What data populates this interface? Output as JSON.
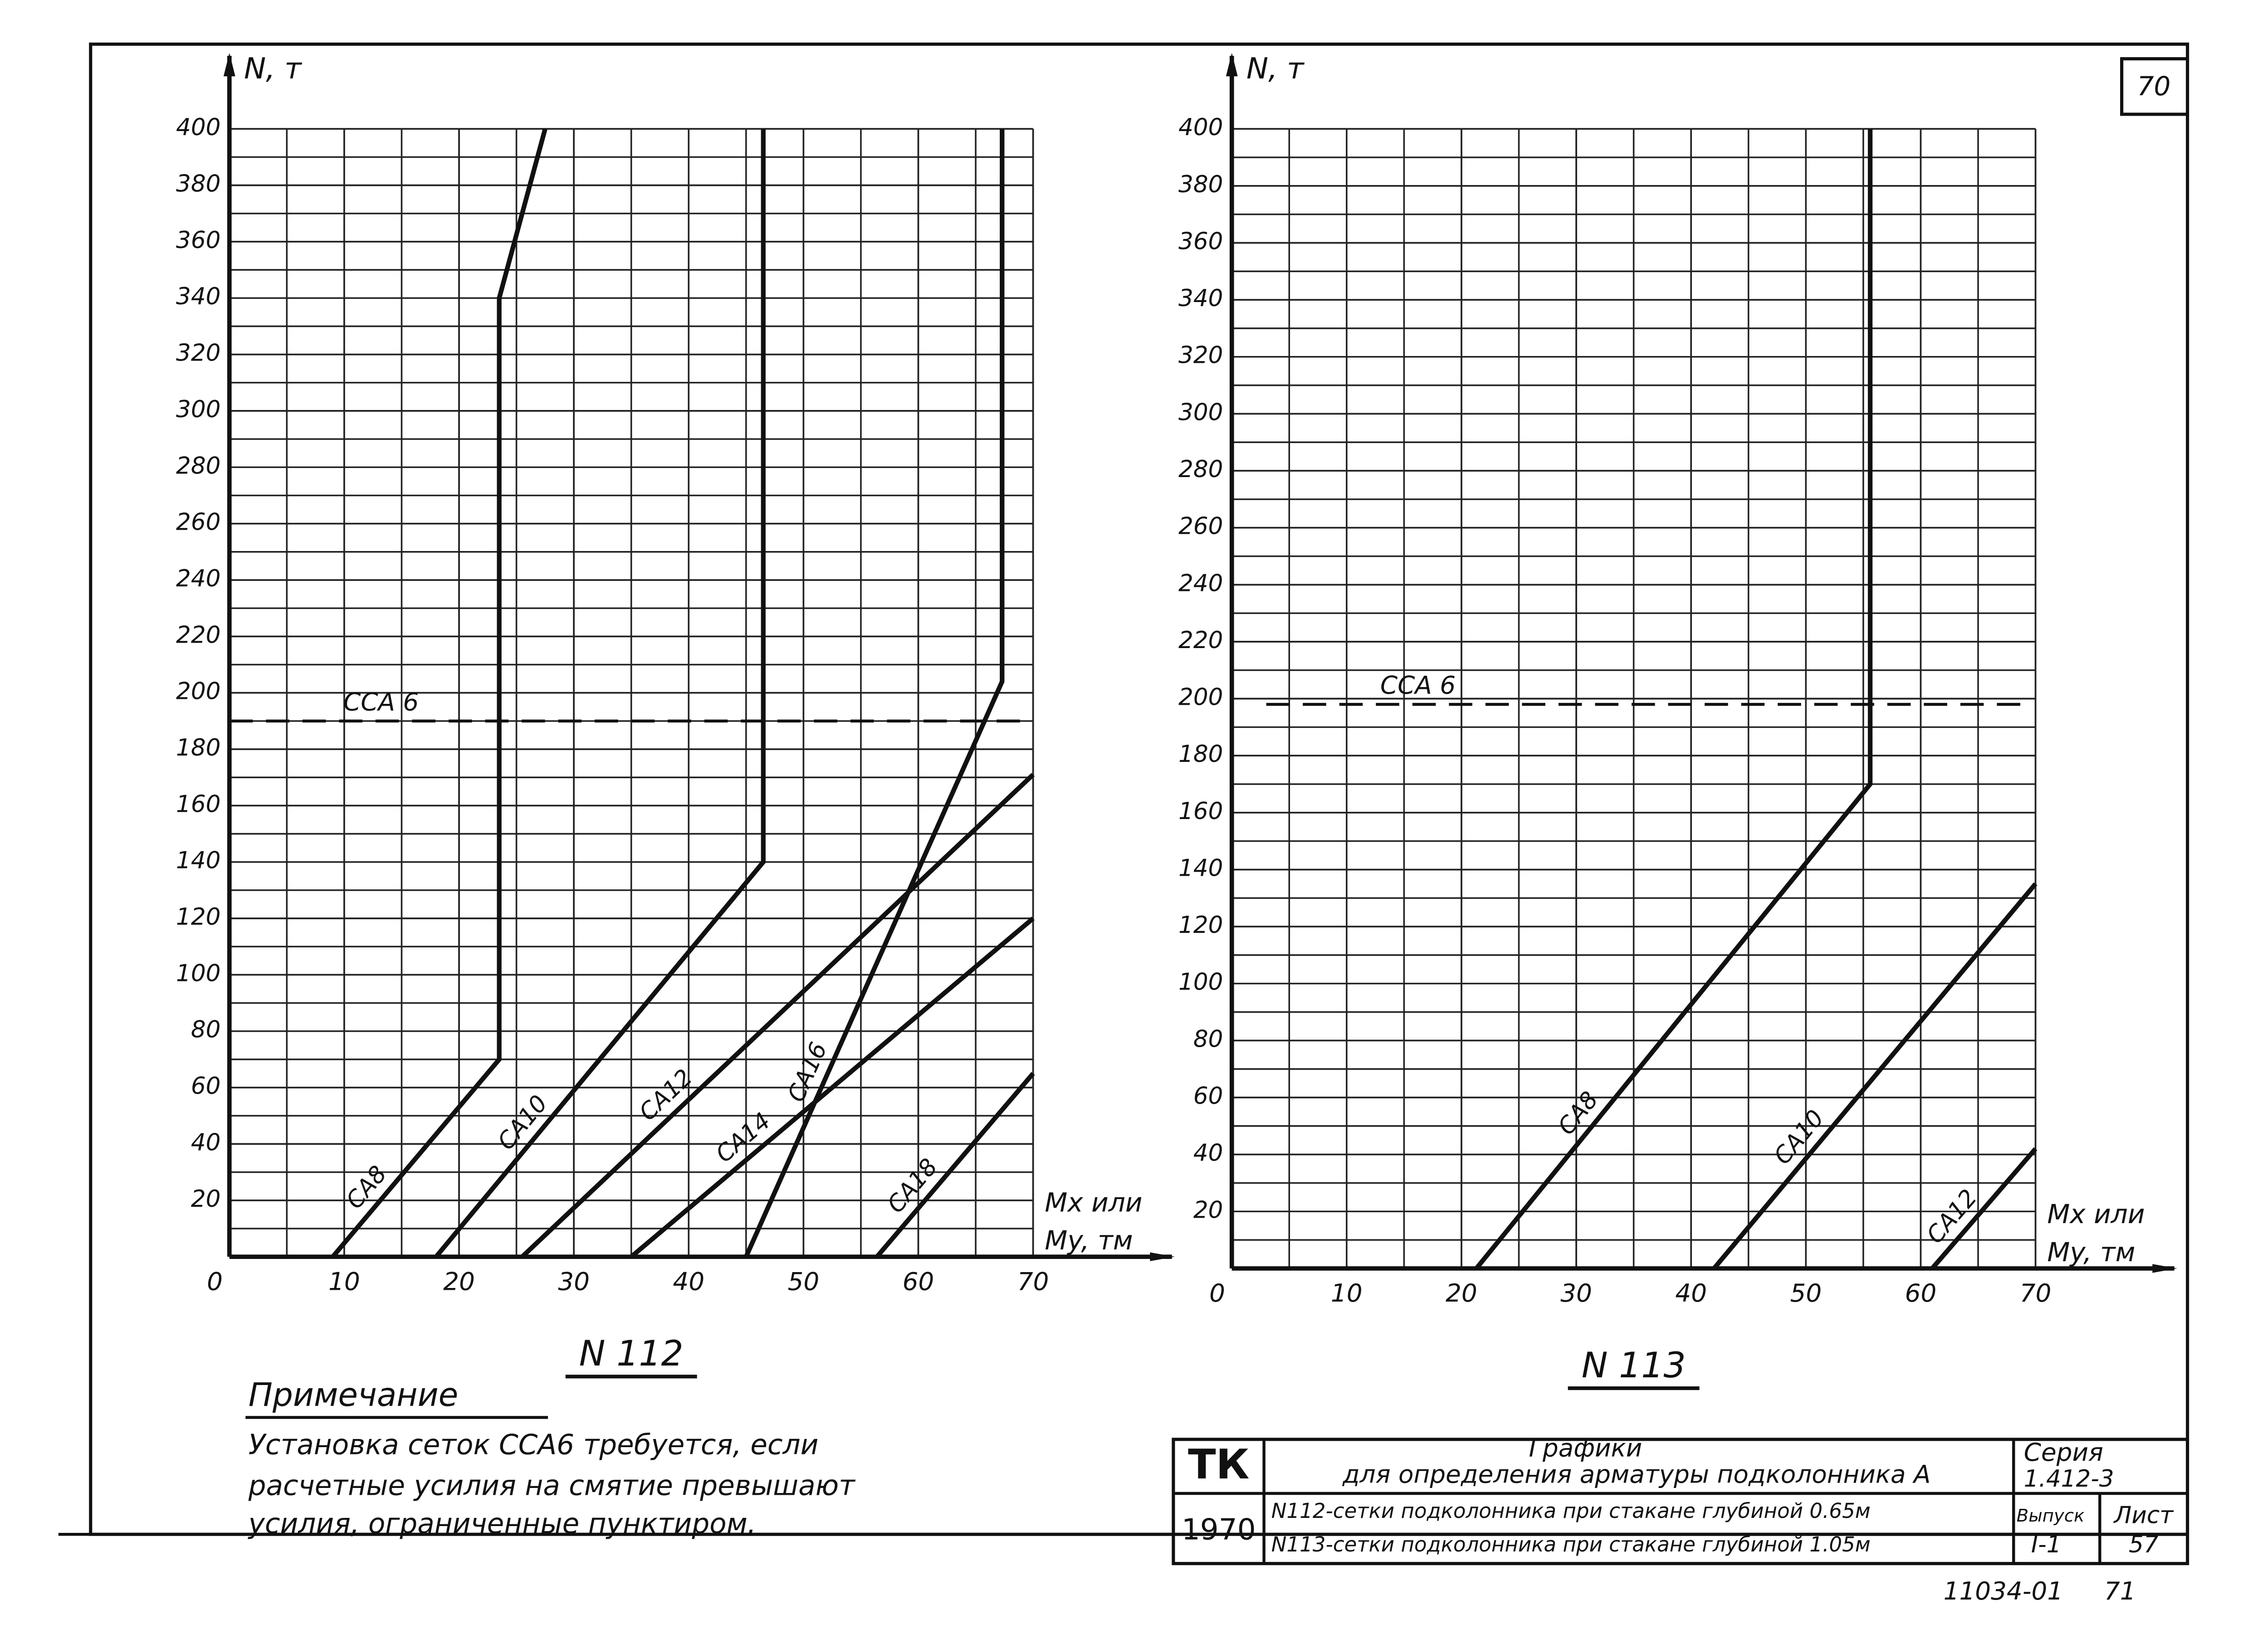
{
  "page_number": "70",
  "chart_data": [
    {
      "type": "line",
      "title": "N 112",
      "y_label": "N, т",
      "x_label": [
        "Mx или",
        "My, тм"
      ],
      "xlim": [
        0,
        70
      ],
      "ylim": [
        0,
        400
      ],
      "xticks": [
        0,
        10,
        20,
        30,
        40,
        50,
        60,
        70
      ],
      "yticks": [
        20,
        40,
        60,
        80,
        100,
        120,
        140,
        160,
        180,
        200,
        220,
        240,
        260,
        280,
        300,
        320,
        340,
        360,
        380,
        400
      ],
      "grid": true,
      "series": [
        {
          "name": "ССА 6",
          "color": "#111111",
          "dashed": true,
          "x": [
            0,
            70
          ],
          "values": [
            190,
            190
          ]
        },
        {
          "name": "СА8",
          "color": "#111111",
          "x": [
            9,
            23.5,
            23.5,
            27.5
          ],
          "values": [
            0,
            70,
            340,
            400
          ]
        },
        {
          "name": "СА10",
          "color": "#111111",
          "x": [
            18,
            46.5,
            46.5
          ],
          "values": [
            0,
            140,
            400
          ]
        },
        {
          "name": "СА12",
          "color": "#111111",
          "x": [
            25.5,
            70
          ],
          "values": [
            0,
            171
          ]
        },
        {
          "name": "СА14",
          "color": "#111111",
          "x": [
            35,
            70
          ],
          "values": [
            0,
            120
          ]
        },
        {
          "name": "СА16",
          "color": "#111111",
          "x": [
            45,
            67.3,
            67.3
          ],
          "values": [
            0,
            204,
            400
          ]
        },
        {
          "name": "СА18",
          "color": "#111111",
          "x": [
            56.4,
            70
          ],
          "values": [
            0,
            65
          ]
        }
      ]
    },
    {
      "type": "line",
      "title": "N 113",
      "y_label": "N, т",
      "x_label": [
        "Mx или",
        "My, тм"
      ],
      "xlim": [
        0,
        70
      ],
      "ylim": [
        0,
        400
      ],
      "xticks": [
        0,
        10,
        20,
        30,
        40,
        50,
        60,
        70
      ],
      "yticks": [
        20,
        40,
        60,
        80,
        100,
        120,
        140,
        160,
        180,
        200,
        220,
        240,
        260,
        280,
        300,
        320,
        340,
        360,
        380,
        400
      ],
      "grid": true,
      "series": [
        {
          "name": "ССА 6",
          "color": "#111111",
          "dashed": true,
          "x": [
            3,
            69
          ],
          "values": [
            198,
            198
          ]
        },
        {
          "name": "СА8",
          "color": "#111111",
          "x": [
            21.3,
            55.6,
            55.6
          ],
          "values": [
            0,
            170,
            400
          ]
        },
        {
          "name": "СА10",
          "color": "#111111",
          "x": [
            42,
            70
          ],
          "values": [
            0,
            135
          ]
        },
        {
          "name": "СА12",
          "color": "#111111",
          "x": [
            61,
            70
          ],
          "values": [
            0,
            42
          ]
        }
      ]
    }
  ],
  "note": {
    "title": "Примечание",
    "lines": [
      "Установка сеток ССА6 требуется, если",
      "расчетные усилия на смятие превышают",
      "усилия, ограниченные пунктиром."
    ]
  },
  "title_block": {
    "org": "ТК",
    "year": "1970",
    "title": "Графики",
    "subtitle": "для определения арматуры подколонника А",
    "row1": "N112-сетки подколонника при стакане глубиной 0.65м",
    "row2": "N113-сетки подколонника при стакане глубиной 1.05м",
    "series_label": "Серия",
    "series_value": "1.412-3",
    "issue_label": "Выпуск",
    "issue_value": "I-1",
    "sheet_label": "Лист",
    "sheet_value": "57"
  },
  "sheet_code": "11034-01",
  "sheet_number": "71"
}
